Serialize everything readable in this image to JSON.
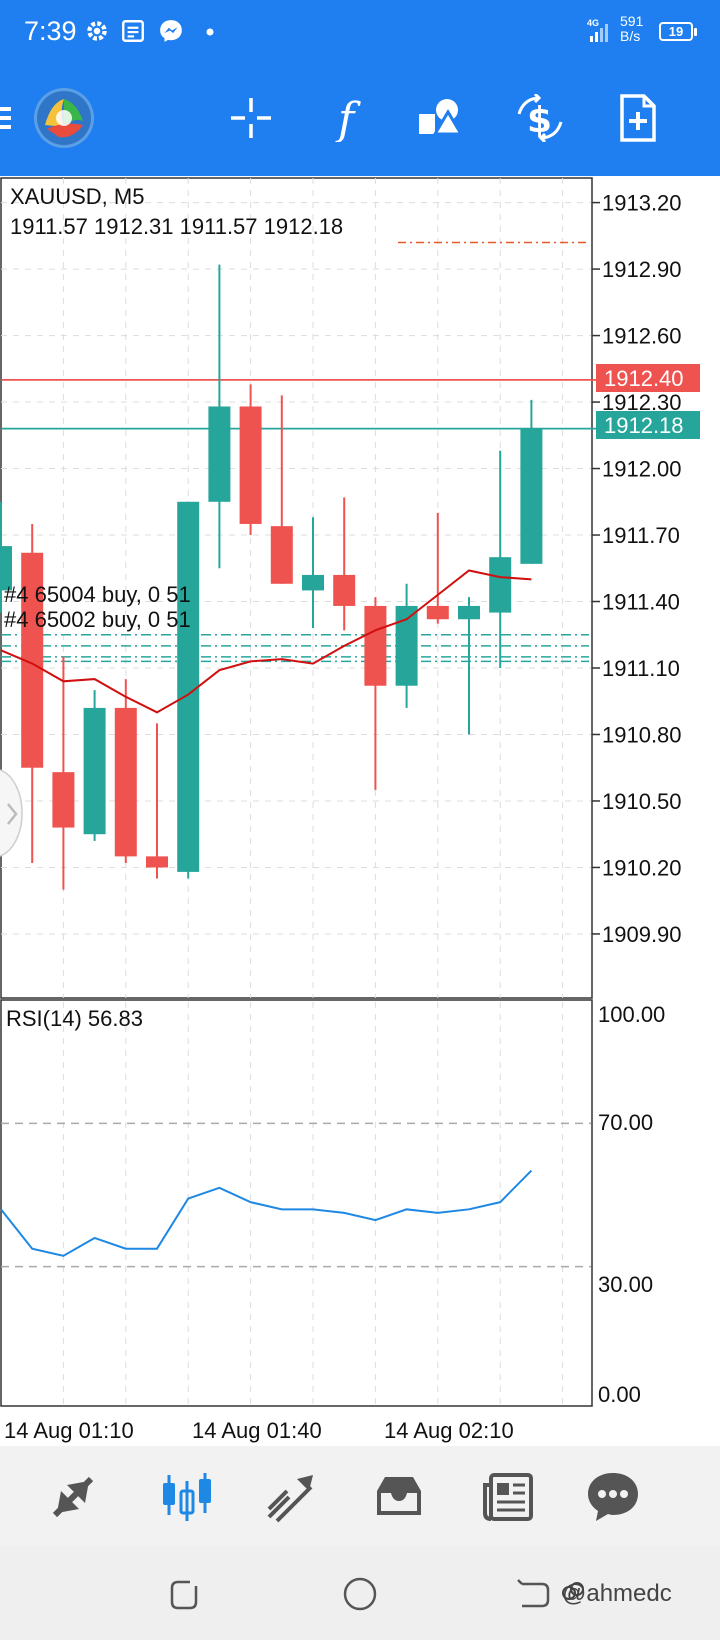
{
  "status_bar": {
    "time": "7:39",
    "network_speed_value": "591",
    "network_speed_unit": "B/s",
    "battery": "19",
    "icons": [
      "gear-icon",
      "news-icon",
      "messenger-icon",
      "dot-icon",
      "signal-icon"
    ]
  },
  "toolbar": {
    "icons": [
      "menu-icon",
      "app-logo",
      "crosshair-icon",
      "indicator-f-icon",
      "objects-icon",
      "trade-icon",
      "new-order-icon"
    ]
  },
  "chart": {
    "symbol_label": "XAUUSD, M5",
    "ohlc_label": "1911.57 1912.31 1911.57 1912.18",
    "price_ticks": [
      "1913.20",
      "1912.90",
      "1912.60",
      "1912.30",
      "1912.00",
      "1911.70",
      "1911.40",
      "1911.10",
      "1910.80",
      "1910.50",
      "1910.20",
      "1909.90"
    ],
    "ask_label": "1912.40",
    "bid_label": "1912.18",
    "order_1": "#4 65004 buy, 0 51",
    "order_2": "#4 65002 buy, 0 51",
    "rsi_label": "RSI(14) 56.83",
    "rsi_ticks": [
      "100.00",
      "70.00",
      "30.00",
      "0.00"
    ],
    "time_labels": [
      "14 Aug 01:10",
      "14 Aug 01:40",
      "14 Aug 02:10"
    ],
    "colors": {
      "up": "#26a69a",
      "down": "#ef5350",
      "ma": "#d01010",
      "rsi": "#1e88e5",
      "ask": "#ef5350",
      "bid": "#26a69a"
    }
  },
  "chart_data": {
    "type": "candlestick",
    "symbol": "XAUUSD",
    "timeframe": "M5",
    "candles": [
      {
        "o": 1911.45,
        "h": 1911.85,
        "l": 1911.35,
        "c": 1911.65
      },
      {
        "o": 1911.62,
        "h": 1911.75,
        "l": 1910.22,
        "c": 1910.65
      },
      {
        "o": 1910.63,
        "h": 1911.15,
        "l": 1910.1,
        "c": 1910.38
      },
      {
        "o": 1910.35,
        "h": 1911.0,
        "l": 1910.32,
        "c": 1910.92
      },
      {
        "o": 1910.92,
        "h": 1911.05,
        "l": 1910.22,
        "c": 1910.25
      },
      {
        "o": 1910.25,
        "h": 1910.85,
        "l": 1910.15,
        "c": 1910.2
      },
      {
        "o": 1910.18,
        "h": 1911.85,
        "l": 1910.15,
        "c": 1911.85
      },
      {
        "o": 1911.85,
        "h": 1912.92,
        "l": 1911.55,
        "c": 1912.28
      },
      {
        "o": 1912.28,
        "h": 1912.38,
        "l": 1911.7,
        "c": 1911.75
      },
      {
        "o": 1911.74,
        "h": 1912.33,
        "l": 1911.48,
        "c": 1911.48
      },
      {
        "o": 1911.45,
        "h": 1911.78,
        "l": 1911.28,
        "c": 1911.52
      },
      {
        "o": 1911.52,
        "h": 1911.87,
        "l": 1911.27,
        "c": 1911.38
      },
      {
        "o": 1911.38,
        "h": 1911.42,
        "l": 1910.55,
        "c": 1911.02
      },
      {
        "o": 1911.02,
        "h": 1911.48,
        "l": 1910.92,
        "c": 1911.38
      },
      {
        "o": 1911.38,
        "h": 1911.8,
        "l": 1911.3,
        "c": 1911.32
      },
      {
        "o": 1911.32,
        "h": 1911.42,
        "l": 1910.8,
        "c": 1911.38
      },
      {
        "o": 1911.35,
        "h": 1912.08,
        "l": 1911.1,
        "c": 1911.6
      },
      {
        "o": 1911.57,
        "h": 1912.31,
        "l": 1911.57,
        "c": 1912.18
      }
    ],
    "moving_average": [
      1911.18,
      1911.12,
      1911.04,
      1911.05,
      1910.97,
      1910.9,
      1910.98,
      1911.09,
      1911.13,
      1911.14,
      1911.12,
      1911.2,
      1911.27,
      1911.32,
      1911.43,
      1911.54,
      1911.51,
      1911.5
    ],
    "ask": 1912.4,
    "bid": 1912.18,
    "orders": [
      1911.25,
      1911.2,
      1911.15,
      1911.13
    ],
    "price_range": [
      1909.62,
      1913.32
    ],
    "rsi": {
      "period": 14,
      "values": [
        46,
        35,
        33,
        38,
        35,
        35,
        49,
        52,
        48,
        46,
        46,
        45,
        43,
        46,
        45,
        46,
        48,
        56.83
      ],
      "levels": [
        70,
        30
      ],
      "range": [
        0,
        100
      ]
    },
    "grid": true
  },
  "bottom_nav": {
    "items": [
      "quotes-icon",
      "chart-icon",
      "trade-icon",
      "history-icon",
      "news-icon",
      "messages-icon"
    ],
    "active": "chart-icon"
  },
  "system_nav": {
    "watermark": "@ahmedc"
  }
}
